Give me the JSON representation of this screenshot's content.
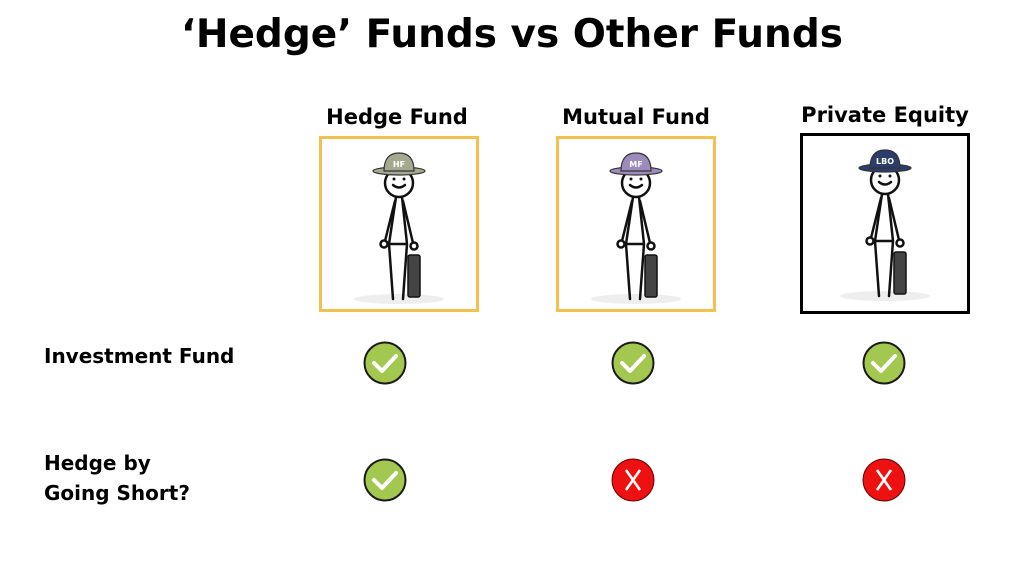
{
  "title": "‘Hedge’ Funds vs Other Funds",
  "columns": [
    {
      "label": "Hedge Fund",
      "hat_text": "HF",
      "hat_color": "#a5a98f",
      "border_color": "#f2c14e"
    },
    {
      "label": "Mutual Fund",
      "hat_text": "MF",
      "hat_color": "#9d8bbd",
      "border_color": "#f2c14e"
    },
    {
      "label": "Private Equity",
      "hat_text": "LBO",
      "hat_color": "#2b3d6b",
      "border_color": "#000000"
    }
  ],
  "rows": [
    {
      "label_lines": [
        "Investment Fund"
      ],
      "values": [
        "check",
        "check",
        "check"
      ]
    },
    {
      "label_lines": [
        "Hedge by",
        "Going Short?"
      ],
      "values": [
        "check",
        "cross",
        "cross"
      ]
    }
  ],
  "colors": {
    "check": "#a3c84f",
    "cross": "#ee1111"
  }
}
